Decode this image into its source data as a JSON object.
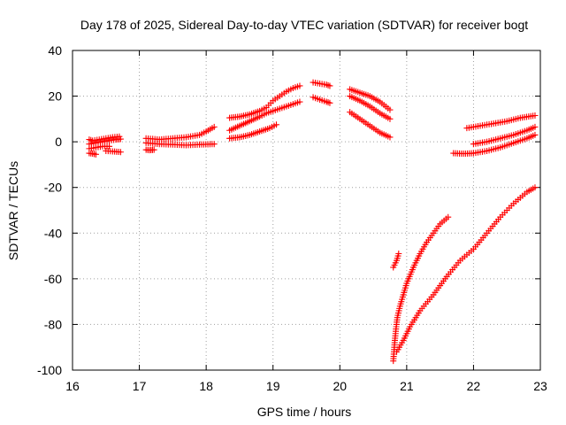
{
  "chart_data": {
    "type": "scatter",
    "title": "Day 178 of 2025, Sidereal Day-to-day VTEC variation (SDTVAR) for receiver bogt",
    "xlabel": "GPS time / hours",
    "ylabel": "SDTVAR / TECUs",
    "xlim": [
      16,
      23
    ],
    "ylim": [
      -100,
      40
    ],
    "xticks": [
      16,
      17,
      18,
      19,
      20,
      21,
      22,
      23
    ],
    "yticks": [
      -100,
      -80,
      -60,
      -40,
      -20,
      0,
      20,
      40
    ],
    "xtick_labels": [
      "16",
      "17",
      "18",
      "19",
      "20",
      "21",
      "22",
      "23"
    ],
    "ytick_labels": [
      "-100",
      "-80",
      "-60",
      "-40",
      "-20",
      "0",
      "20",
      "40"
    ],
    "grid": true,
    "marker": "+",
    "color": "#ff0000",
    "series": [
      {
        "name": "s1",
        "points": [
          [
            16.25,
            1.0
          ],
          [
            16.3,
            0.5
          ],
          [
            16.4,
            1.0
          ],
          [
            16.5,
            1.5
          ],
          [
            16.6,
            2.0
          ],
          [
            16.7,
            2.3
          ]
        ]
      },
      {
        "name": "s2",
        "points": [
          [
            16.25,
            -1.0
          ],
          [
            16.35,
            -0.5
          ],
          [
            16.45,
            0.0
          ],
          [
            16.55,
            0.5
          ],
          [
            16.65,
            1.0
          ],
          [
            16.72,
            1.2
          ]
        ]
      },
      {
        "name": "s3",
        "points": [
          [
            16.25,
            -3.0
          ],
          [
            16.35,
            -2.5
          ],
          [
            16.45,
            -2.0
          ],
          [
            16.55,
            -2.0
          ]
        ]
      },
      {
        "name": "s4",
        "points": [
          [
            16.25,
            -5.0
          ],
          [
            16.3,
            -5.2
          ],
          [
            16.35,
            -5.5
          ]
        ]
      },
      {
        "name": "s5",
        "points": [
          [
            16.5,
            -4.0
          ],
          [
            16.6,
            -4.2
          ],
          [
            16.72,
            -4.5
          ]
        ]
      },
      {
        "name": "s6",
        "points": [
          [
            17.1,
            1.5
          ],
          [
            17.3,
            1.0
          ],
          [
            17.5,
            1.5
          ],
          [
            17.7,
            2.0
          ],
          [
            17.9,
            3.0
          ],
          [
            18.0,
            4.5
          ],
          [
            18.12,
            6.5
          ]
        ]
      },
      {
        "name": "s7",
        "points": [
          [
            17.1,
            -0.5
          ],
          [
            17.3,
            -1.0
          ],
          [
            17.5,
            -1.2
          ],
          [
            17.7,
            -1.5
          ],
          [
            17.9,
            -1.2
          ],
          [
            18.12,
            -1.0
          ]
        ]
      },
      {
        "name": "s8",
        "points": [
          [
            17.1,
            -3.5
          ],
          [
            17.15,
            -3.7
          ],
          [
            17.22,
            -3.5
          ]
        ]
      },
      {
        "name": "s9",
        "points": [
          [
            18.35,
            10.5
          ],
          [
            18.5,
            11.0
          ],
          [
            18.65,
            12.0
          ],
          [
            18.8,
            13.5
          ],
          [
            18.9,
            15.0
          ],
          [
            19.0,
            18.0
          ],
          [
            19.1,
            20.0
          ],
          [
            19.2,
            22.0
          ],
          [
            19.3,
            23.5
          ],
          [
            19.4,
            24.5
          ]
        ]
      },
      {
        "name": "s10",
        "points": [
          [
            18.35,
            5.0
          ],
          [
            18.5,
            7.0
          ],
          [
            18.65,
            9.0
          ],
          [
            18.8,
            11.0
          ],
          [
            18.9,
            12.5
          ],
          [
            19.0,
            13.5
          ],
          [
            19.1,
            14.5
          ],
          [
            19.2,
            15.5
          ],
          [
            19.3,
            16.5
          ],
          [
            19.4,
            17.5
          ]
        ]
      },
      {
        "name": "s11",
        "points": [
          [
            18.35,
            1.5
          ],
          [
            18.5,
            2.0
          ],
          [
            18.65,
            3.0
          ],
          [
            18.8,
            4.5
          ],
          [
            18.95,
            6.0
          ],
          [
            19.05,
            7.5
          ]
        ]
      },
      {
        "name": "s12",
        "points": [
          [
            19.6,
            26.0
          ],
          [
            19.7,
            25.5
          ],
          [
            19.8,
            25.0
          ],
          [
            19.85,
            24.5
          ]
        ]
      },
      {
        "name": "s13",
        "points": [
          [
            19.6,
            19.5
          ],
          [
            19.7,
            18.5
          ],
          [
            19.8,
            17.5
          ],
          [
            19.85,
            17.0
          ]
        ]
      },
      {
        "name": "s14",
        "points": [
          [
            20.15,
            23.0
          ],
          [
            20.3,
            21.5
          ],
          [
            20.45,
            20.0
          ],
          [
            20.6,
            17.5
          ],
          [
            20.75,
            14.0
          ]
        ]
      },
      {
        "name": "s15",
        "points": [
          [
            20.15,
            20.0
          ],
          [
            20.3,
            18.0
          ],
          [
            20.45,
            15.5
          ],
          [
            20.6,
            12.5
          ],
          [
            20.75,
            10.0
          ]
        ]
      },
      {
        "name": "s16",
        "points": [
          [
            20.15,
            13.0
          ],
          [
            20.3,
            10.0
          ],
          [
            20.45,
            7.0
          ],
          [
            20.6,
            4.0
          ],
          [
            20.75,
            2.0
          ]
        ]
      },
      {
        "name": "s17",
        "points": [
          [
            20.8,
            -55.0
          ],
          [
            20.85,
            -52.0
          ],
          [
            20.88,
            -49.0
          ]
        ]
      },
      {
        "name": "s18",
        "points": [
          [
            20.8,
            -96.0
          ],
          [
            20.82,
            -88.0
          ],
          [
            20.84,
            -82.0
          ],
          [
            20.86,
            -77.0
          ],
          [
            20.9,
            -72.0
          ],
          [
            20.95,
            -67.0
          ],
          [
            21.0,
            -62.0
          ],
          [
            21.1,
            -55.0
          ],
          [
            21.2,
            -49.0
          ],
          [
            21.3,
            -44.0
          ],
          [
            21.4,
            -40.0
          ],
          [
            21.5,
            -36.0
          ],
          [
            21.62,
            -33.0
          ]
        ]
      },
      {
        "name": "s19",
        "points": [
          [
            20.85,
            -92.0
          ],
          [
            20.95,
            -87.0
          ],
          [
            21.05,
            -81.0
          ],
          [
            21.2,
            -74.0
          ],
          [
            21.4,
            -67.0
          ],
          [
            21.6,
            -59.0
          ],
          [
            21.8,
            -52.0
          ],
          [
            22.0,
            -47.0
          ],
          [
            22.2,
            -40.0
          ],
          [
            22.4,
            -33.0
          ],
          [
            22.6,
            -27.0
          ],
          [
            22.8,
            -22.0
          ],
          [
            22.92,
            -20.0
          ]
        ]
      },
      {
        "name": "s20",
        "points": [
          [
            21.7,
            -5.0
          ],
          [
            21.85,
            -5.2
          ],
          [
            22.0,
            -5.0
          ],
          [
            22.2,
            -4.0
          ],
          [
            22.4,
            -2.5
          ],
          [
            22.6,
            -0.5
          ],
          [
            22.8,
            1.5
          ],
          [
            22.92,
            3.0
          ]
        ]
      },
      {
        "name": "s21",
        "points": [
          [
            22.0,
            -1.0
          ],
          [
            22.2,
            0.0
          ],
          [
            22.4,
            1.5
          ],
          [
            22.6,
            3.0
          ],
          [
            22.8,
            5.0
          ],
          [
            22.92,
            6.5
          ]
        ]
      },
      {
        "name": "s22",
        "points": [
          [
            21.9,
            6.0
          ],
          [
            22.1,
            7.0
          ],
          [
            22.3,
            8.0
          ],
          [
            22.5,
            9.0
          ],
          [
            22.7,
            10.5
          ],
          [
            22.92,
            11.5
          ]
        ]
      }
    ]
  }
}
